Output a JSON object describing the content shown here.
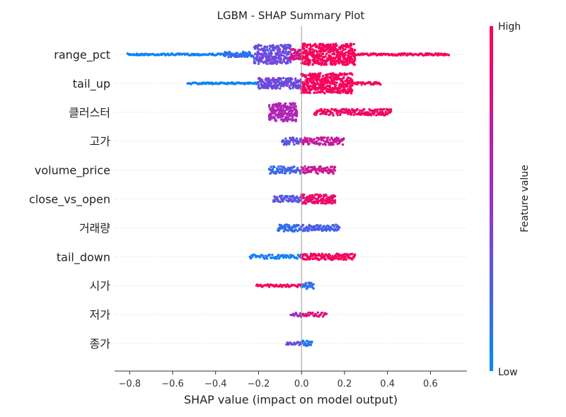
{
  "chart_data": {
    "type": "scatter",
    "title": "LGBM - SHAP Summary Plot",
    "xlabel": "SHAP value (impact on model output)",
    "xlim": [
      -0.87,
      0.77
    ],
    "xticks": [
      -0.8,
      -0.6,
      -0.4,
      -0.2,
      0.0,
      0.2,
      0.4,
      0.6
    ],
    "xtick_labels": [
      "−0.8",
      "−0.6",
      "−0.4",
      "−0.2",
      "0.0",
      "0.2",
      "0.4",
      "0.6"
    ],
    "grid": false,
    "colorbar": {
      "title": "Feature value",
      "high_label": "High",
      "low_label": "Low",
      "low_color": "#008afb",
      "high_color": "#ff0052",
      "mid_color": "#9b2fd0"
    },
    "features": [
      {
        "name": "range_pct",
        "min": -0.81,
        "max": 0.69,
        "segments": [
          {
            "from": -0.81,
            "to": -0.36,
            "density": 0.06,
            "value": 0.02
          },
          {
            "from": -0.36,
            "to": -0.22,
            "density": 0.25,
            "value": 0.15
          },
          {
            "from": -0.22,
            "to": -0.05,
            "density": 0.9,
            "value": 0.35
          },
          {
            "from": -0.05,
            "to": 0.0,
            "density": 0.5,
            "value": 0.8
          },
          {
            "from": 0.0,
            "to": 0.25,
            "density": 1.0,
            "value": 0.97
          },
          {
            "from": 0.25,
            "to": 0.69,
            "density": 0.1,
            "value": 0.98
          }
        ]
      },
      {
        "name": "tail_up",
        "min": -0.53,
        "max": 0.37,
        "segments": [
          {
            "from": -0.53,
            "to": -0.2,
            "density": 0.07,
            "value": 0.02
          },
          {
            "from": -0.2,
            "to": 0.0,
            "density": 0.5,
            "value": 0.35
          },
          {
            "from": 0.0,
            "to": 0.24,
            "density": 0.95,
            "value": 0.97
          },
          {
            "from": 0.24,
            "to": 0.37,
            "density": 0.12,
            "value": 0.98
          }
        ]
      },
      {
        "name": "클러스터",
        "min": -0.15,
        "max": 0.42,
        "segments": [
          {
            "from": -0.15,
            "to": -0.02,
            "density": 0.85,
            "value": 0.6
          },
          {
            "from": 0.06,
            "to": 0.42,
            "density": 0.3,
            "value": 0.92
          }
        ]
      },
      {
        "name": "고가",
        "min": -0.09,
        "max": 0.2,
        "segments": [
          {
            "from": -0.09,
            "to": 0.0,
            "density": 0.35,
            "value": 0.3
          },
          {
            "from": 0.0,
            "to": 0.2,
            "density": 0.35,
            "value": 0.7
          }
        ]
      },
      {
        "name": "volume_price",
        "min": -0.15,
        "max": 0.16,
        "segments": [
          {
            "from": -0.15,
            "to": 0.0,
            "density": 0.35,
            "value": 0.2
          },
          {
            "from": 0.0,
            "to": 0.16,
            "density": 0.35,
            "value": 0.75
          }
        ]
      },
      {
        "name": "close_vs_open",
        "min": -0.13,
        "max": 0.16,
        "segments": [
          {
            "from": -0.13,
            "to": 0.0,
            "density": 0.3,
            "value": 0.3
          },
          {
            "from": 0.0,
            "to": 0.16,
            "density": 0.45,
            "value": 0.9
          }
        ]
      },
      {
        "name": "거래량",
        "min": -0.11,
        "max": 0.18,
        "segments": [
          {
            "from": -0.11,
            "to": 0.0,
            "density": 0.35,
            "value": 0.15
          },
          {
            "from": 0.0,
            "to": 0.18,
            "density": 0.3,
            "value": 0.25
          }
        ]
      },
      {
        "name": "tail_down",
        "min": -0.24,
        "max": 0.25,
        "segments": [
          {
            "from": -0.24,
            "to": 0.0,
            "density": 0.2,
            "value": 0.05
          },
          {
            "from": 0.0,
            "to": 0.25,
            "density": 0.3,
            "value": 0.95
          }
        ]
      },
      {
        "name": "시가",
        "min": -0.21,
        "max": 0.06,
        "segments": [
          {
            "from": -0.21,
            "to": 0.0,
            "density": 0.12,
            "value": 0.98
          },
          {
            "from": 0.0,
            "to": 0.06,
            "density": 0.3,
            "value": 0.15
          }
        ]
      },
      {
        "name": "저가",
        "min": -0.05,
        "max": 0.12,
        "segments": [
          {
            "from": -0.05,
            "to": 0.0,
            "density": 0.2,
            "value": 0.5
          },
          {
            "from": 0.0,
            "to": 0.12,
            "density": 0.2,
            "value": 0.85
          }
        ]
      },
      {
        "name": "종가",
        "min": -0.07,
        "max": 0.05,
        "segments": [
          {
            "from": -0.07,
            "to": 0.0,
            "density": 0.15,
            "value": 0.35
          },
          {
            "from": 0.0,
            "to": 0.05,
            "density": 0.25,
            "value": 0.1
          }
        ]
      }
    ]
  }
}
